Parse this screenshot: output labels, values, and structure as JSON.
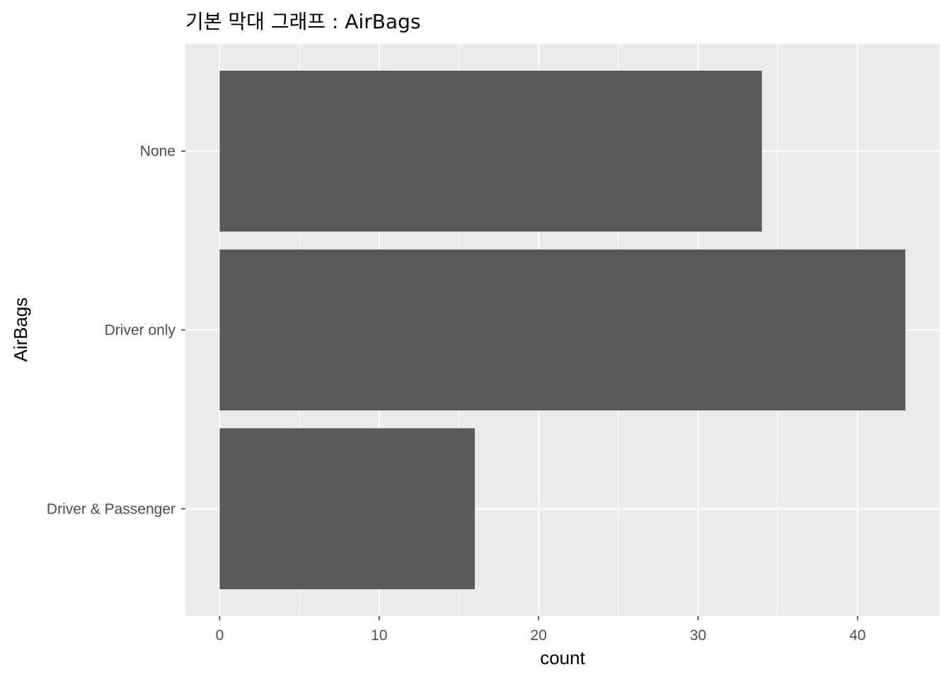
{
  "chart_data": {
    "type": "bar",
    "orientation": "horizontal",
    "title": "기본 막대 그래프 : AirBags",
    "xlabel": "count",
    "ylabel": "AirBags",
    "categories": [
      "None",
      "Driver only",
      "Driver & Passenger"
    ],
    "values": [
      34,
      43,
      16
    ],
    "xlim": [
      -2.15,
      45.15
    ],
    "xticks": [
      0,
      10,
      20,
      30,
      40
    ],
    "xticks_minor": [
      5,
      15,
      25,
      35
    ],
    "grid": true,
    "legend": "none",
    "colors": {
      "bar": "#595959",
      "panel": "#ebebeb",
      "grid": "#ffffff",
      "tick_label": "#4d4d4d",
      "tick": "#333333"
    }
  }
}
